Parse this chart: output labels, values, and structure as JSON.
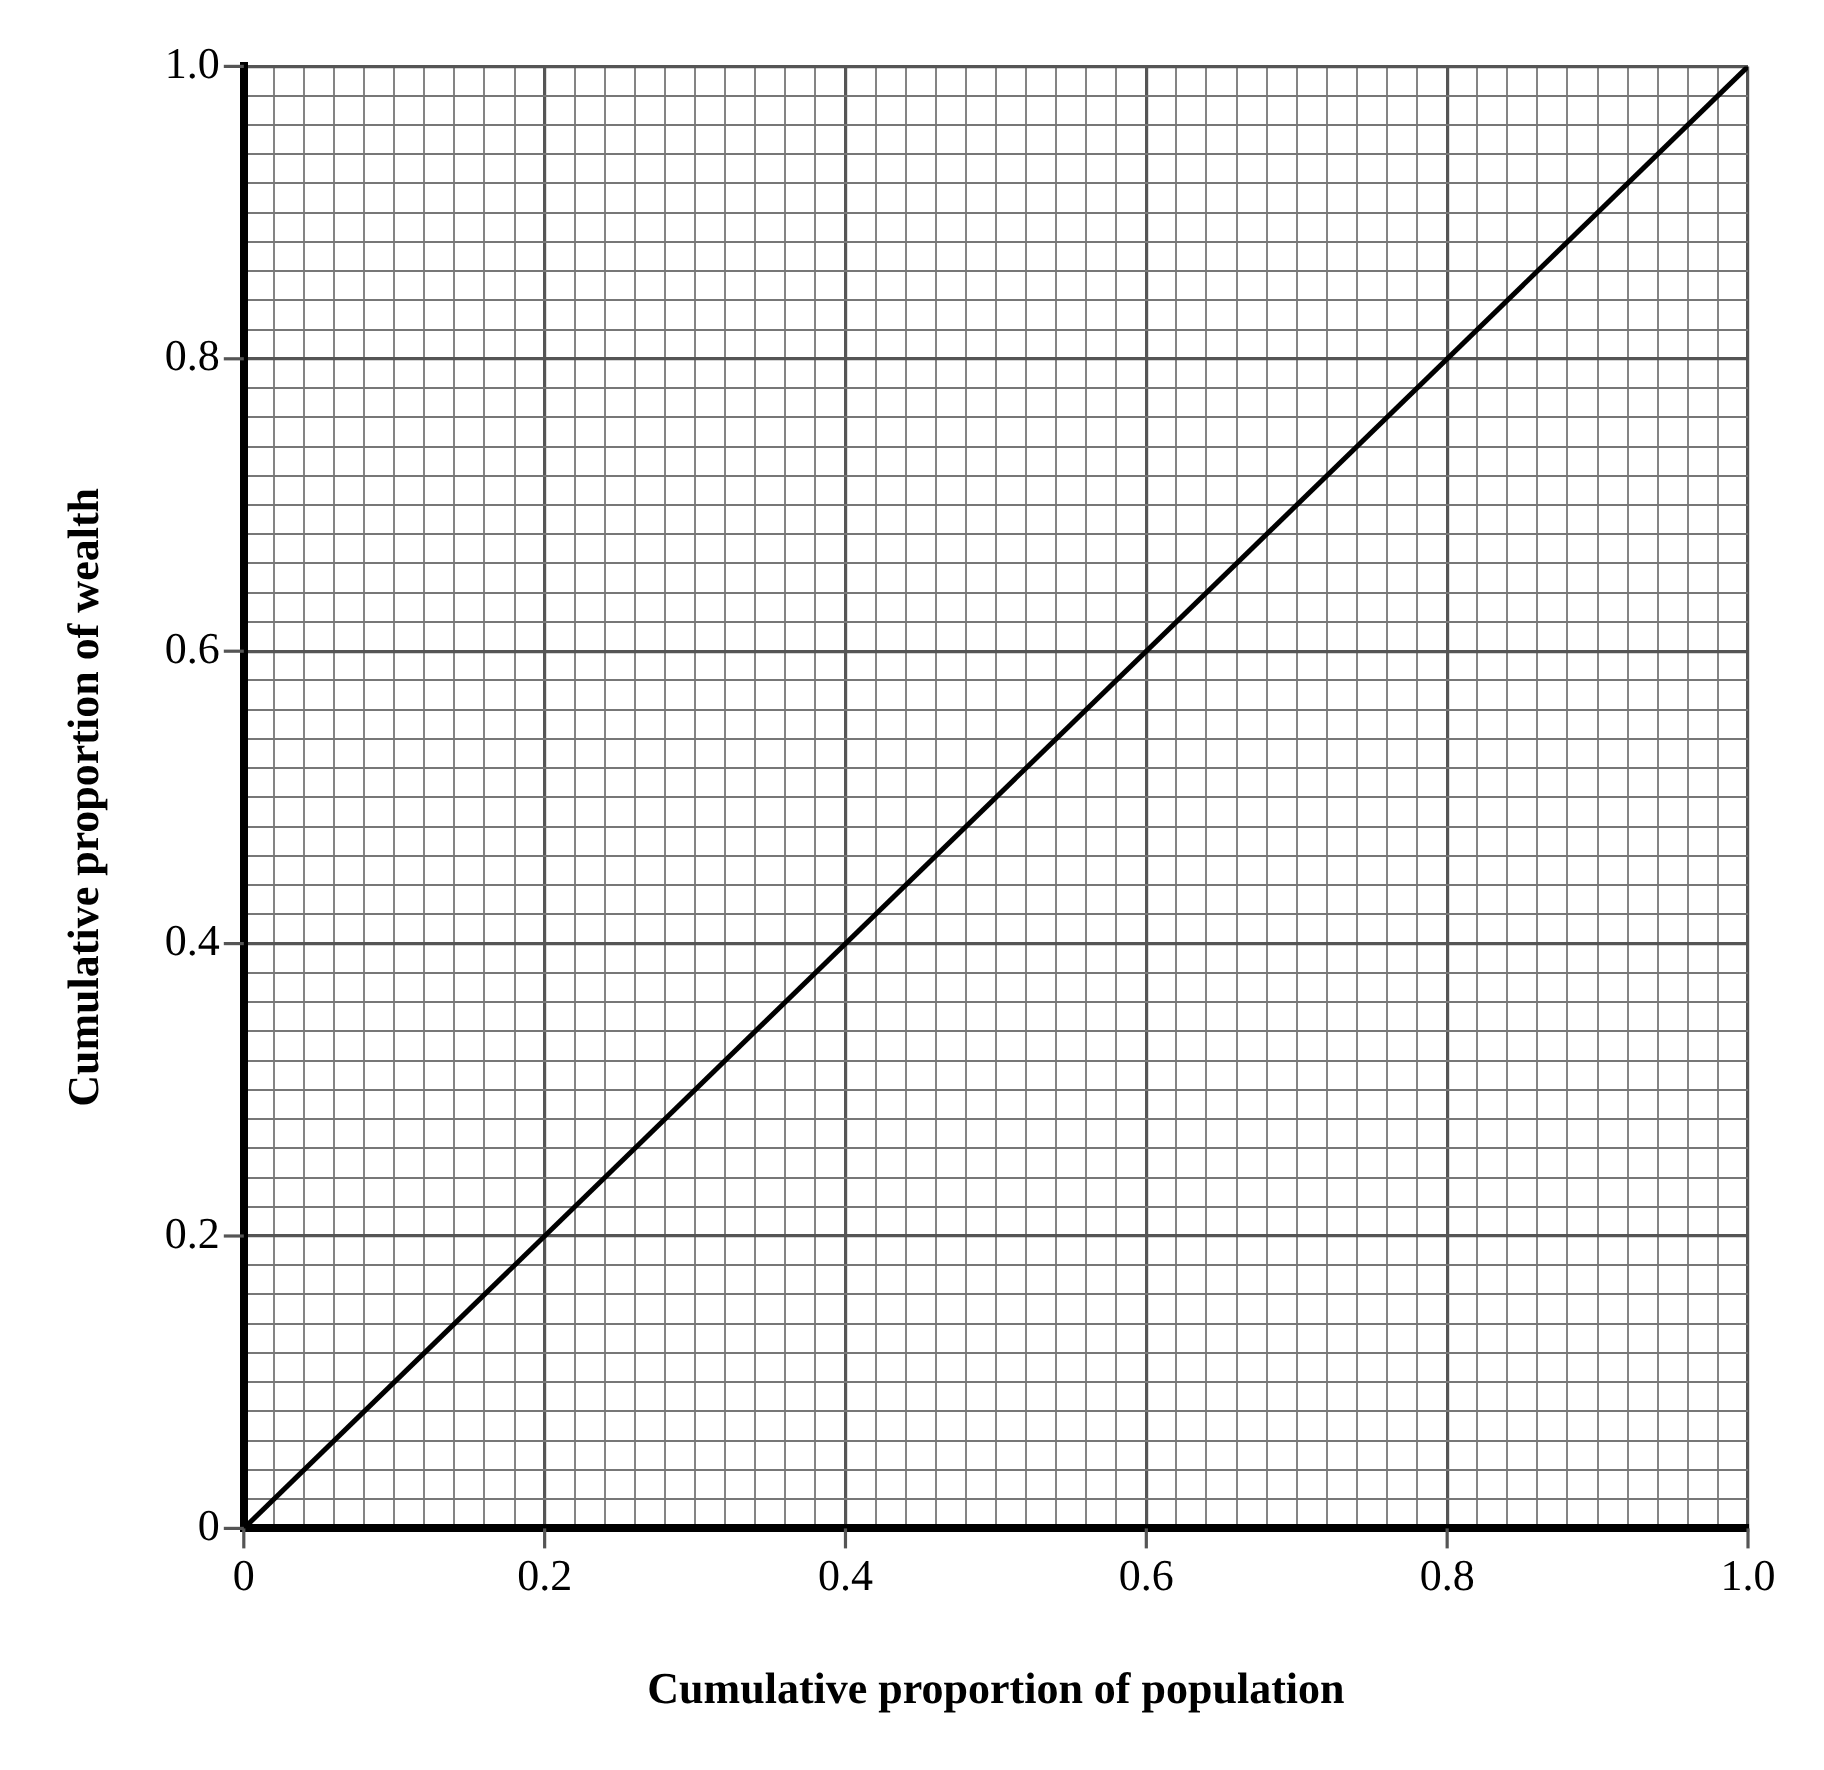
{
  "chart_data": {
    "type": "line",
    "xlabel": "Cumulative proportion of population",
    "ylabel": "Cumulative proportion of wealth",
    "x": [
      0,
      1
    ],
    "series": [
      {
        "color": "#000000",
        "values": [
          0,
          1
        ]
      }
    ],
    "xlim": [
      0,
      1
    ],
    "ylim": [
      0,
      1
    ],
    "xticks": [
      0,
      {
        "value": 0.02,
        "label": null
      },
      {
        "value": 0.04,
        "label": null
      },
      {
        "value": 0.06,
        "label": null
      },
      {
        "value": 0.08,
        "label": null
      },
      {
        "value": 0.1,
        "label": null
      },
      {
        "value": 0.12,
        "label": null
      },
      {
        "value": 0.14,
        "label": null
      },
      {
        "value": 0.16,
        "label": null
      },
      {
        "value": 0.18,
        "label": null
      },
      0.2,
      {
        "value": 0.22,
        "label": null
      },
      {
        "value": 0.24,
        "label": null
      },
      {
        "value": 0.26,
        "label": null
      },
      {
        "value": 0.28,
        "label": null
      },
      {
        "value": 0.3,
        "label": null
      },
      {
        "value": 0.32,
        "label": null
      },
      {
        "value": 0.34,
        "label": null
      },
      {
        "value": 0.36,
        "label": null
      },
      {
        "value": 0.38,
        "label": null
      },
      0.4,
      {
        "value": 0.42,
        "label": null
      },
      {
        "value": 0.44,
        "label": null
      },
      {
        "value": 0.46,
        "label": null
      },
      {
        "value": 0.48,
        "label": null
      },
      {
        "value": 0.5,
        "label": null
      },
      {
        "value": 0.52,
        "label": null
      },
      {
        "value": 0.54,
        "label": null
      },
      {
        "value": 0.56,
        "label": null
      },
      {
        "value": 0.58,
        "label": null
      },
      0.6,
      {
        "value": 0.62,
        "label": null
      },
      {
        "value": 0.64,
        "label": null
      },
      {
        "value": 0.66,
        "label": null
      },
      {
        "value": 0.68,
        "label": null
      },
      {
        "value": 0.7,
        "label": null
      },
      {
        "value": 0.72,
        "label": null
      },
      {
        "value": 0.74,
        "label": null
      },
      {
        "value": 0.76,
        "label": null
      },
      {
        "value": 0.78,
        "label": null
      },
      0.8,
      {
        "value": 0.82,
        "label": null
      },
      {
        "value": 0.84,
        "label": null
      },
      {
        "value": 0.86,
        "label": null
      },
      {
        "value": 0.88,
        "label": null
      },
      {
        "value": 0.9,
        "label": null
      },
      {
        "value": 0.92,
        "label": null
      },
      {
        "value": 0.94,
        "label": null
      },
      {
        "value": 0.96,
        "label": null
      },
      {
        "value": 0.98,
        "label": null
      },
      {
        "value": 1,
        "label": "1.0"
      }
    ],
    "yticks": [
      0,
      {
        "value": 0.02,
        "label": null
      },
      {
        "value": 0.04,
        "label": null
      },
      {
        "value": 0.06,
        "label": null
      },
      {
        "value": 0.08,
        "label": null
      },
      {
        "value": 0.1,
        "label": null
      },
      {
        "value": 0.12,
        "label": null
      },
      {
        "value": 0.14,
        "label": null
      },
      {
        "value": 0.16,
        "label": null
      },
      {
        "value": 0.18,
        "label": null
      },
      0.2,
      {
        "value": 0.22,
        "label": null
      },
      {
        "value": 0.24,
        "label": null
      },
      {
        "value": 0.26,
        "label": null
      },
      {
        "value": 0.28,
        "label": null
      },
      {
        "value": 0.3,
        "label": null
      },
      {
        "value": 0.32,
        "label": null
      },
      {
        "value": 0.34,
        "label": null
      },
      {
        "value": 0.36,
        "label": null
      },
      {
        "value": 0.38,
        "label": null
      },
      0.4,
      {
        "value": 0.42,
        "label": null
      },
      {
        "value": 0.44,
        "label": null
      },
      {
        "value": 0.46,
        "label": null
      },
      {
        "value": 0.48,
        "label": null
      },
      {
        "value": 0.5,
        "label": null
      },
      {
        "value": 0.52,
        "label": null
      },
      {
        "value": 0.54,
        "label": null
      },
      {
        "value": 0.56,
        "label": null
      },
      {
        "value": 0.58,
        "label": null
      },
      0.6,
      {
        "value": 0.62,
        "label": null
      },
      {
        "value": 0.64,
        "label": null
      },
      {
        "value": 0.66,
        "label": null
      },
      {
        "value": 0.68,
        "label": null
      },
      {
        "value": 0.7,
        "label": null
      },
      {
        "value": 0.72,
        "label": null
      },
      {
        "value": 0.74,
        "label": null
      },
      {
        "value": 0.76,
        "label": null
      },
      {
        "value": 0.78,
        "label": null
      },
      0.8,
      {
        "value": 0.82,
        "label": null
      },
      {
        "value": 0.84,
        "label": null
      },
      {
        "value": 0.86,
        "label": null
      },
      {
        "value": 0.88,
        "label": null
      },
      {
        "value": 0.9,
        "label": null
      },
      {
        "value": 0.92,
        "label": null
      },
      {
        "value": 0.94,
        "label": null
      },
      {
        "value": 0.96,
        "label": null
      },
      {
        "value": 0.98,
        "label": null
      },
      {
        "value": 1,
        "label": "1.0"
      }
    ],
    "grid": true,
    "legend": false,
    "marker": "none",
    "line_style": "solid"
  }
}
